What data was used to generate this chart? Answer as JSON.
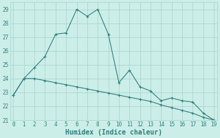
{
  "xlabel": "Humidex (Indice chaleur)",
  "x": [
    0,
    1,
    2,
    3,
    4,
    5,
    6,
    7,
    8,
    9,
    10,
    11,
    12,
    13,
    14,
    15,
    16,
    17,
    18,
    19
  ],
  "y_upper": [
    22.8,
    24.0,
    24.8,
    25.6,
    27.2,
    27.3,
    29.0,
    28.5,
    29.0,
    27.2,
    23.7,
    24.6,
    23.4,
    23.1,
    22.4,
    22.6,
    22.4,
    22.3,
    21.5,
    21.0
  ],
  "y_lower": [
    22.8,
    24.0,
    24.0,
    23.85,
    23.7,
    23.55,
    23.4,
    23.25,
    23.1,
    22.95,
    22.8,
    22.65,
    22.5,
    22.35,
    22.1,
    21.9,
    21.7,
    21.5,
    21.2,
    21.0
  ],
  "line_color": "#2e7d7d",
  "bg_color": "#cceee8",
  "grid_color": "#aad4ce",
  "ylim": [
    21.0,
    29.5
  ],
  "yticks": [
    21,
    22,
    23,
    24,
    25,
    26,
    27,
    28,
    29
  ],
  "xticks": [
    0,
    1,
    2,
    3,
    4,
    5,
    6,
    7,
    8,
    9,
    10,
    11,
    12,
    13,
    14,
    15,
    16,
    17,
    18,
    19
  ],
  "tick_fontsize": 5.5,
  "xlabel_fontsize": 7.0,
  "marker_size": 3.0,
  "linewidth": 0.8
}
